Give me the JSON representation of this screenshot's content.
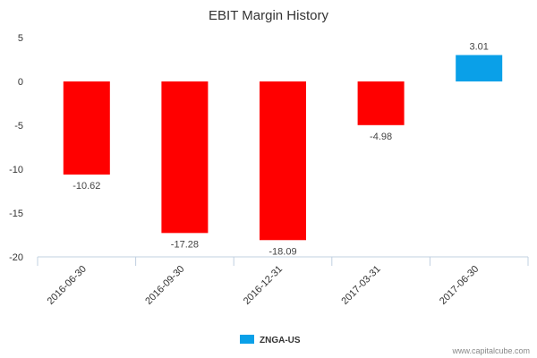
{
  "chart_data": {
    "type": "bar",
    "title": "EBIT Margin History",
    "categories": [
      "2016-06-30",
      "2016-09-30",
      "2016-12-31",
      "2017-03-31",
      "2017-06-30"
    ],
    "series": [
      {
        "name": "ZNGA-US",
        "values": [
          -10.62,
          -17.28,
          -18.09,
          -4.98,
          3.01
        ]
      }
    ],
    "ylim": [
      -20,
      5
    ],
    "yticks": [
      "5",
      "0",
      "-5",
      "-10",
      "-15",
      "-20"
    ],
    "data_labels": [
      "-10.62",
      "-17.28",
      "-18.09",
      "-4.98",
      "3.01"
    ],
    "colors": {
      "negative": "#ff0000",
      "positive": "#0aa0e8"
    },
    "legend_position": "bottom-center"
  },
  "watermark": "www.capitalcube.com"
}
